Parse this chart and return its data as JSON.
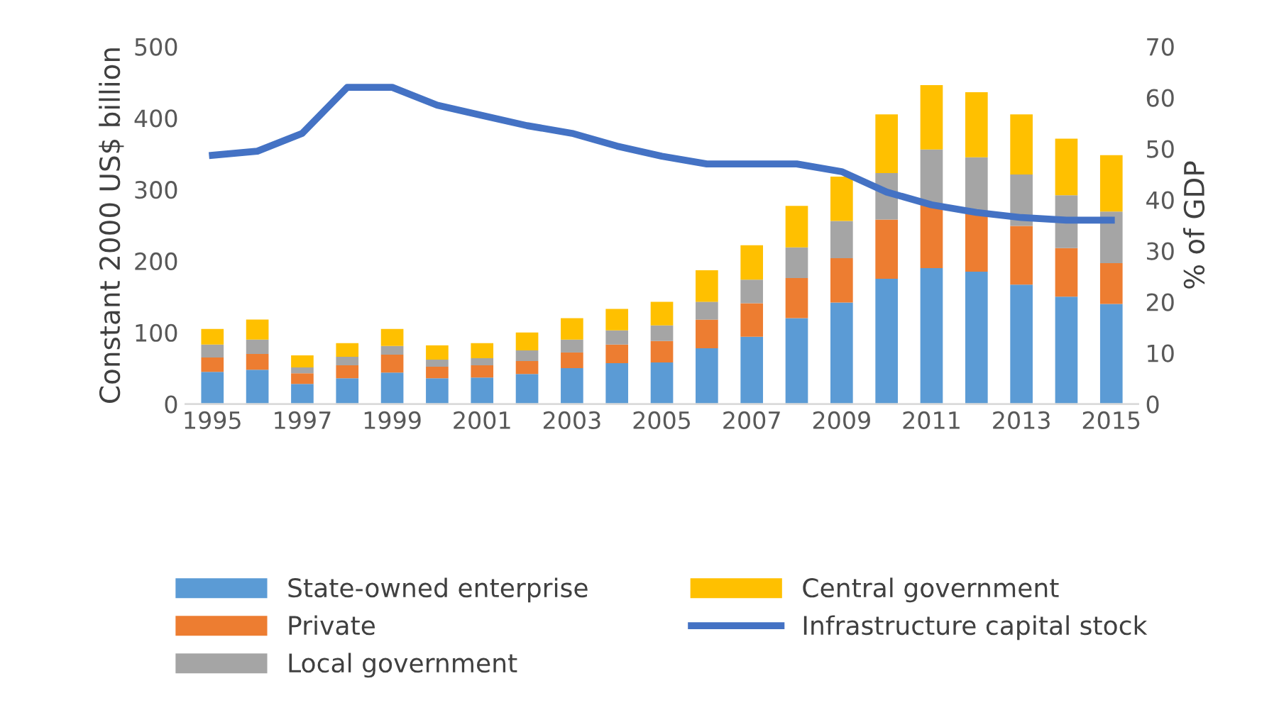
{
  "chart_data": {
    "type": "bar",
    "stacked": true,
    "ylabel": "Constant 2000 US$ billion",
    "y2label": "% of GDP",
    "categories": [
      "1995",
      null,
      "1997",
      null,
      "1999",
      null,
      "2001",
      null,
      "2003",
      null,
      "2005",
      null,
      "2007",
      null,
      "2009",
      null,
      "2011",
      null,
      "2013",
      null,
      "2015"
    ],
    "series": [
      {
        "name": "State-owned enterprise",
        "color": "#5b9bd5",
        "values": [
          45,
          48,
          28,
          36,
          44,
          36,
          37,
          42,
          50,
          57,
          58,
          78,
          94,
          120,
          142,
          175,
          190,
          185,
          167,
          150,
          140
        ]
      },
      {
        "name": "Private",
        "color": "#ed7d31",
        "values": [
          20,
          22,
          15,
          18,
          25,
          16,
          17,
          18,
          22,
          26,
          30,
          40,
          47,
          56,
          62,
          83,
          88,
          84,
          82,
          68,
          57
        ]
      },
      {
        "name": "Local government",
        "color": "#a5a5a5",
        "values": [
          18,
          20,
          8,
          12,
          12,
          10,
          10,
          15,
          18,
          20,
          22,
          25,
          33,
          43,
          52,
          65,
          78,
          76,
          72,
          74,
          72
        ]
      },
      {
        "name": "Central government",
        "color": "#ffc000",
        "values": [
          22,
          28,
          17,
          19,
          24,
          20,
          21,
          25,
          30,
          30,
          33,
          44,
          48,
          58,
          62,
          82,
          90,
          91,
          84,
          79,
          79
        ]
      },
      {
        "name": "Infrastructure capital stock",
        "type": "line",
        "axis": "y2",
        "color": "#4472c4",
        "values": [
          48.7,
          49.5,
          53,
          62,
          62,
          58.5,
          56.5,
          54.5,
          53,
          50.5,
          48.5,
          47,
          47,
          47,
          45.5,
          41.5,
          39,
          37.5,
          36.5,
          36,
          36
        ]
      }
    ],
    "ylim": [
      0,
      500
    ],
    "yticks": [
      0,
      100,
      200,
      300,
      400,
      500
    ],
    "y2lim": [
      0,
      70
    ],
    "y2ticks": [
      0,
      10,
      20,
      30,
      40,
      50,
      60,
      70
    ],
    "grid": false,
    "legend": "bottom",
    "marker": "none"
  }
}
